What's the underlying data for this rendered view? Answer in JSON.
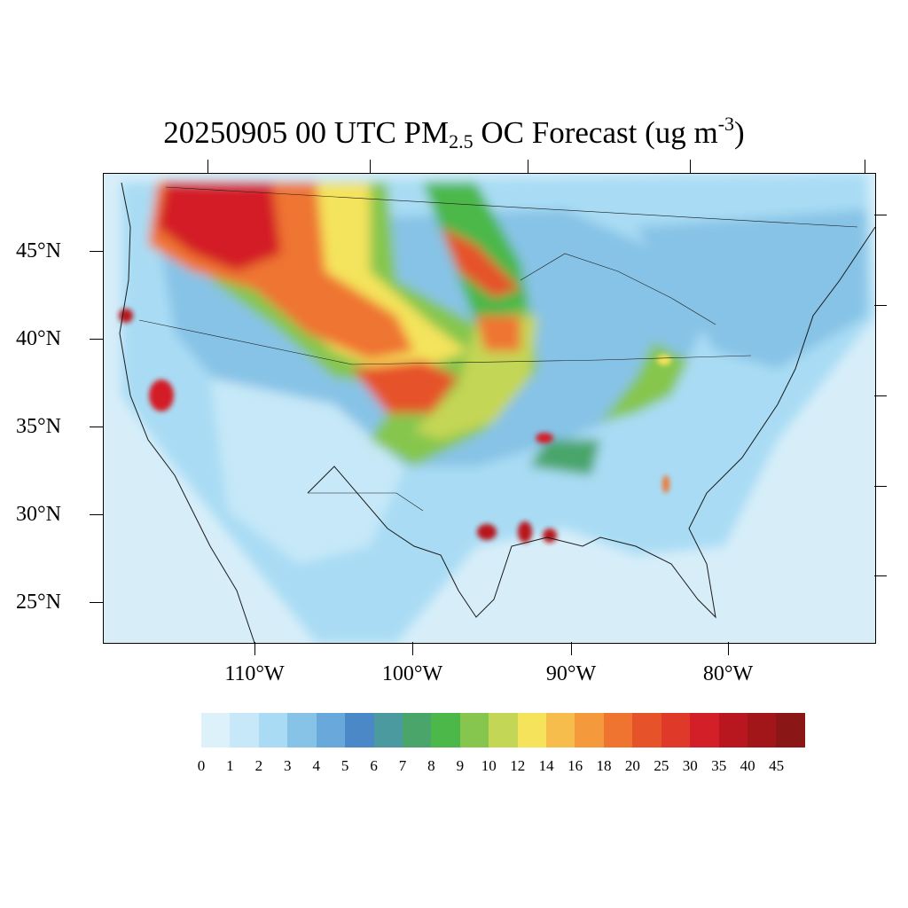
{
  "title": {
    "prefix": "20250905 00 UTC PM",
    "subscript": "2.5",
    "middle": " OC Forecast (ug m",
    "superscript": "-3",
    "suffix": ")"
  },
  "axes": {
    "latitude_labels": [
      "45°N",
      "40°N",
      "35°N",
      "30°N",
      "25°N"
    ],
    "longitude_labels": [
      "110°W",
      "100°W",
      "90°W",
      "80°W"
    ]
  },
  "colorbar": {
    "labels": [
      "0",
      "1",
      "2",
      "3",
      "4",
      "5",
      "6",
      "7",
      "8",
      "9",
      "10",
      "12",
      "14",
      "16",
      "18",
      "20",
      "25",
      "30",
      "35",
      "40",
      "45"
    ],
    "colors": [
      "#ddf1fa",
      "#c6e8f8",
      "#a9dcf4",
      "#87c3e6",
      "#68a8da",
      "#4a88c8",
      "#4a9aa0",
      "#4aa56a",
      "#4cb84a",
      "#86c64e",
      "#c4d655",
      "#f4e35b",
      "#f6bd4c",
      "#f49a3c",
      "#ef7430",
      "#e6532b",
      "#df3a29",
      "#d31f27",
      "#b8171f",
      "#a2161a",
      "#8b1616"
    ]
  },
  "map": {
    "background_color": "#cfeaf7",
    "border_color": "#1a1a1a"
  }
}
